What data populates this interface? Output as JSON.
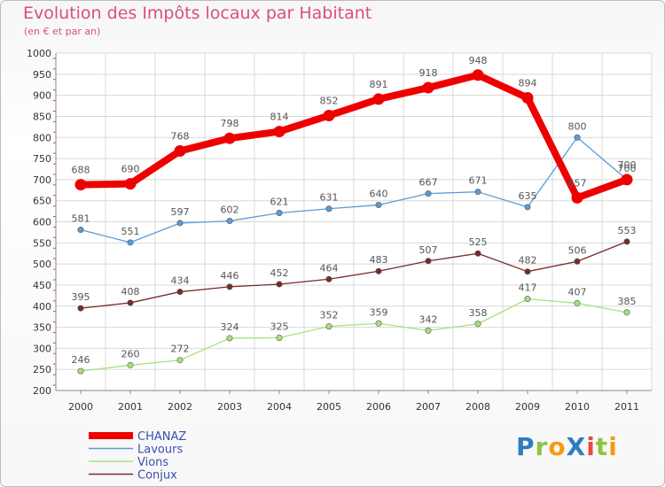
{
  "title": "Evolution des Impôts locaux par Habitant",
  "subtitle": "(en € et par an)",
  "logo": {
    "text": "ProXiti",
    "letters": [
      {
        "ch": "P",
        "color": "#2e7dc2"
      },
      {
        "ch": "r",
        "color": "#8bc53f"
      },
      {
        "ch": "o",
        "color": "#f39c12"
      },
      {
        "ch": "X",
        "color": "#2e7dc2"
      },
      {
        "ch": "i",
        "color": "#e74c3c"
      },
      {
        "ch": "t",
        "color": "#8bc53f"
      },
      {
        "ch": "i",
        "color": "#f39c12"
      }
    ]
  },
  "chart_data": {
    "type": "line",
    "title": "Evolution des Impôts locaux par Habitant",
    "subtitle": "(en € et par an)",
    "xlabel": "",
    "ylabel": "",
    "x": [
      "2000",
      "2001",
      "2002",
      "2003",
      "2004",
      "2005",
      "2006",
      "2007",
      "2008",
      "2009",
      "2010",
      "2011"
    ],
    "ylim": [
      200,
      1000
    ],
    "yticks": [
      200,
      250,
      300,
      350,
      400,
      450,
      500,
      550,
      600,
      650,
      700,
      750,
      800,
      850,
      900,
      950,
      1000
    ],
    "grid": true,
    "legend_position": "bottom-left",
    "series": [
      {
        "name": "CHANAZ",
        "color": "#ee0000",
        "values": [
          688,
          690,
          768,
          798,
          814,
          852,
          891,
          918,
          948,
          894,
          657,
          700
        ],
        "labels": [
          "688",
          "690",
          "768",
          "798",
          "814",
          "852",
          "891",
          "918",
          "948",
          "894",
          "657",
          "700"
        ]
      },
      {
        "name": "Lavours",
        "color": "#5b9bd5",
        "values": [
          581,
          551,
          597,
          602,
          621,
          631,
          640,
          667,
          671,
          635,
          800,
          700
        ],
        "labels": [
          "581",
          "551",
          "597",
          "602",
          "621",
          "631",
          "640",
          "667",
          "671",
          "635",
          "800",
          "700"
        ]
      },
      {
        "name": "Vions",
        "color": "#a6e27a",
        "values": [
          246,
          260,
          272,
          324,
          325,
          352,
          359,
          342,
          358,
          417,
          407,
          385
        ],
        "labels": [
          "246",
          "260",
          "272",
          "324",
          "325",
          "352",
          "359",
          "342",
          "358",
          "417",
          "407",
          "385"
        ]
      },
      {
        "name": "Conjux",
        "color": "#7a2a2a",
        "values": [
          395,
          408,
          434,
          446,
          452,
          464,
          483,
          507,
          525,
          482,
          506,
          553
        ],
        "labels": [
          "395",
          "408",
          "434",
          "446",
          "452",
          "464",
          "483",
          "507",
          "525",
          "482",
          "506",
          "553"
        ]
      }
    ]
  }
}
